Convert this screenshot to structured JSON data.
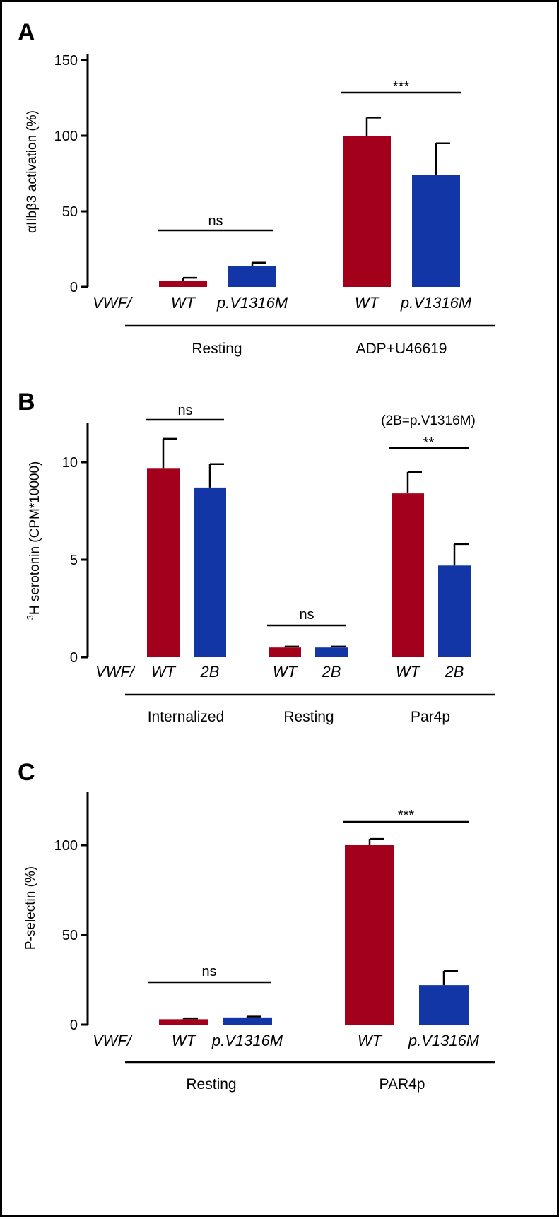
{
  "colors": {
    "wt": "#a3001b",
    "mutant": "#1336a7",
    "ink": "#000000"
  },
  "chart_data": [
    {
      "panel": "A",
      "type": "bar",
      "ylabel": "αIIbβ3 activation (%)",
      "ylim": [
        0,
        150
      ],
      "yticks": [
        "0",
        "50",
        "100",
        "150"
      ],
      "row_label": "VWF/",
      "categories": [
        "WT",
        "p.V1316M",
        "WT",
        "p.V1316M"
      ],
      "groups": [
        {
          "label": "Resting",
          "members": [
            0,
            1
          ]
        },
        {
          "label": "ADP+U46619",
          "members": [
            2,
            3
          ]
        }
      ],
      "series": [
        {
          "values": [
            4,
            14,
            100,
            74
          ],
          "errors": [
            2,
            2,
            12,
            21
          ],
          "colors": [
            "wt",
            "mutant",
            "wt",
            "mutant"
          ]
        }
      ],
      "significance": [
        {
          "label": "ns",
          "from": 0,
          "to": 1
        },
        {
          "label": "***",
          "from": 2,
          "to": 3
        }
      ],
      "note": ""
    },
    {
      "panel": "B",
      "type": "bar",
      "ylabel": "3H serotonin (CPM*10000)",
      "ylabel_sup": "3",
      "ylabel_rest": "H serotonin (CPM*10000)",
      "ylim": [
        0,
        12
      ],
      "yticks": [
        "0",
        "5",
        "10"
      ],
      "row_label": "VWF/",
      "categories": [
        "WT",
        "2B",
        "WT",
        "2B",
        "WT",
        "2B"
      ],
      "groups": [
        {
          "label": "Internalized",
          "members": [
            0,
            1
          ]
        },
        {
          "label": "Resting",
          "members": [
            2,
            3
          ]
        },
        {
          "label": "Par4p",
          "members": [
            4,
            5
          ]
        }
      ],
      "series": [
        {
          "values": [
            9.7,
            8.7,
            0.5,
            0.5,
            8.4,
            4.7
          ],
          "errors": [
            1.5,
            1.2,
            0.05,
            0.05,
            1.1,
            1.1
          ],
          "colors": [
            "wt",
            "mutant",
            "wt",
            "mutant",
            "wt",
            "mutant"
          ]
        }
      ],
      "significance": [
        {
          "label": "ns",
          "from": 0,
          "to": 1
        },
        {
          "label": "ns",
          "from": 2,
          "to": 3
        },
        {
          "label": "**",
          "from": 4,
          "to": 5
        }
      ],
      "note": "(2B=p.V1316M)"
    },
    {
      "panel": "C",
      "type": "bar",
      "ylabel": "P-selectin (%)",
      "ylim": [
        0,
        130
      ],
      "yticks": [
        "0",
        "50",
        "100"
      ],
      "row_label": "VWF/",
      "categories": [
        "WT",
        "p.V1316M",
        "WT",
        "p.V1316M"
      ],
      "groups": [
        {
          "label": "Resting",
          "members": [
            0,
            1
          ]
        },
        {
          "label": "PAR4p",
          "members": [
            2,
            3
          ]
        }
      ],
      "series": [
        {
          "values": [
            3,
            4,
            100,
            22
          ],
          "errors": [
            0.5,
            0.5,
            3.5,
            8
          ],
          "colors": [
            "wt",
            "mutant",
            "wt",
            "mutant"
          ]
        }
      ],
      "significance": [
        {
          "label": "ns",
          "from": 0,
          "to": 1
        },
        {
          "label": "***",
          "from": 2,
          "to": 3
        }
      ],
      "note": ""
    }
  ]
}
